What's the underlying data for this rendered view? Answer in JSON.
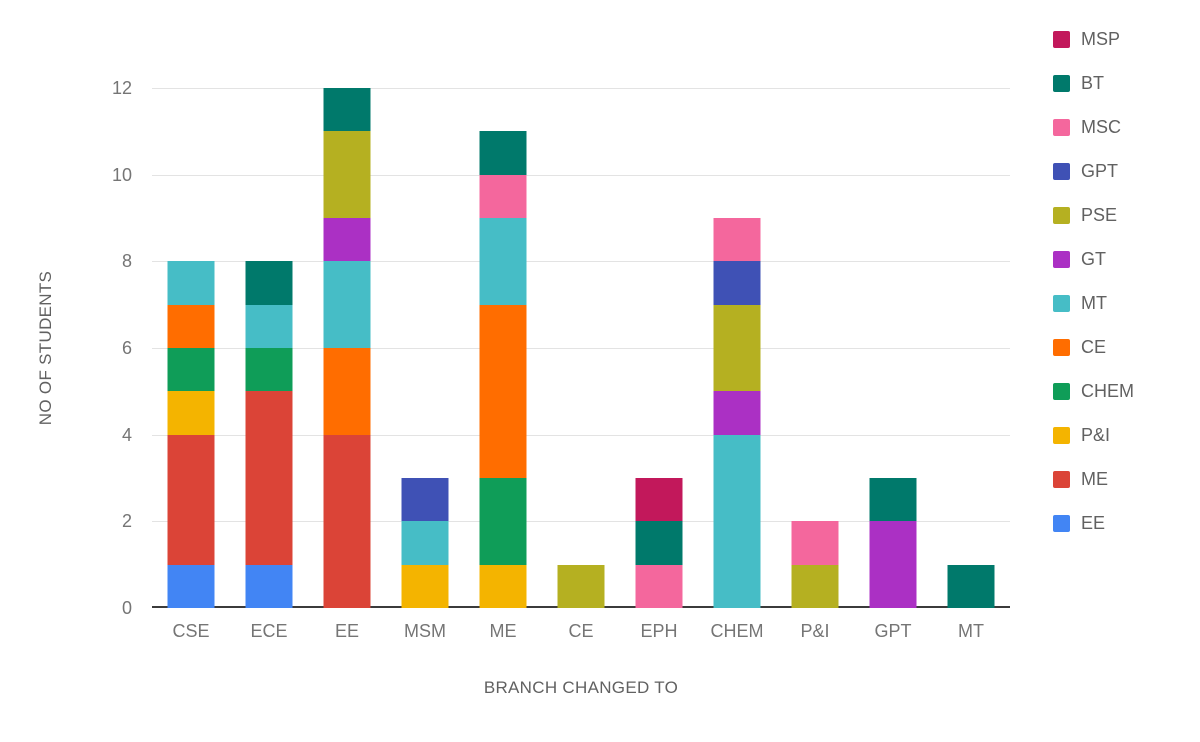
{
  "chart_data": {
    "type": "bar",
    "stacked": true,
    "title": "",
    "xlabel": "BRANCH CHANGED TO",
    "ylabel": "NO OF STUDENTS",
    "ylim": [
      0,
      12
    ],
    "yticks": [
      0,
      2,
      4,
      6,
      8,
      10,
      12
    ],
    "grid": true,
    "grid_color": "#e3e3e3",
    "baseline_color": "#3b3b3b",
    "tick_label_color": "#757575",
    "axis_title_color": "#616161",
    "categories": [
      "CSE",
      "ECE",
      "EE",
      "MSM",
      "ME",
      "CE",
      "EPH",
      "CHEM",
      "P&I",
      "GPT",
      "MT"
    ],
    "series": [
      {
        "name": "EE",
        "color": "#4285F4",
        "values": [
          1,
          1,
          0,
          0,
          0,
          0,
          0,
          0,
          0,
          0,
          0
        ]
      },
      {
        "name": "ME",
        "color": "#DB4437",
        "values": [
          3,
          4,
          4,
          0,
          0,
          0,
          0,
          0,
          0,
          0,
          0
        ]
      },
      {
        "name": "P&I",
        "color": "#F4B400",
        "values": [
          1,
          0,
          0,
          1,
          1,
          0,
          0,
          0,
          0,
          0,
          0
        ]
      },
      {
        "name": "CHEM",
        "color": "#0F9D58",
        "values": [
          1,
          1,
          0,
          0,
          2,
          0,
          0,
          0,
          0,
          0,
          0
        ]
      },
      {
        "name": "CE",
        "color": "#FF6D00",
        "values": [
          1,
          0,
          2,
          0,
          4,
          0,
          0,
          0,
          0,
          0,
          0
        ]
      },
      {
        "name": "MT",
        "color": "#46BDC6",
        "values": [
          1,
          1,
          2,
          1,
          2,
          0,
          0,
          4,
          0,
          0,
          0
        ]
      },
      {
        "name": "GT",
        "color": "#AB30C4",
        "values": [
          0,
          0,
          1,
          0,
          0,
          0,
          0,
          1,
          0,
          2,
          0
        ]
      },
      {
        "name": "PSE",
        "color": "#B5B021",
        "values": [
          0,
          0,
          2,
          0,
          0,
          1,
          0,
          2,
          1,
          0,
          0
        ]
      },
      {
        "name": "GPT",
        "color": "#3F51B5",
        "values": [
          0,
          0,
          0,
          1,
          0,
          0,
          0,
          1,
          0,
          0,
          0
        ]
      },
      {
        "name": "MSC",
        "color": "#F4679D",
        "values": [
          0,
          0,
          0,
          0,
          1,
          0,
          1,
          1,
          1,
          0,
          0
        ]
      },
      {
        "name": "BT",
        "color": "#00796B",
        "values": [
          0,
          1,
          1,
          0,
          1,
          0,
          1,
          0,
          0,
          1,
          1
        ]
      },
      {
        "name": "MSP",
        "color": "#C2185B",
        "values": [
          0,
          0,
          0,
          0,
          0,
          0,
          1,
          0,
          0,
          0,
          0
        ]
      }
    ],
    "legend": {
      "position": "right",
      "entries": [
        "MSP",
        "BT",
        "MSC",
        "GPT",
        "PSE",
        "GT",
        "MT",
        "CE",
        "CHEM",
        "P&I",
        "ME",
        "EE"
      ]
    }
  }
}
